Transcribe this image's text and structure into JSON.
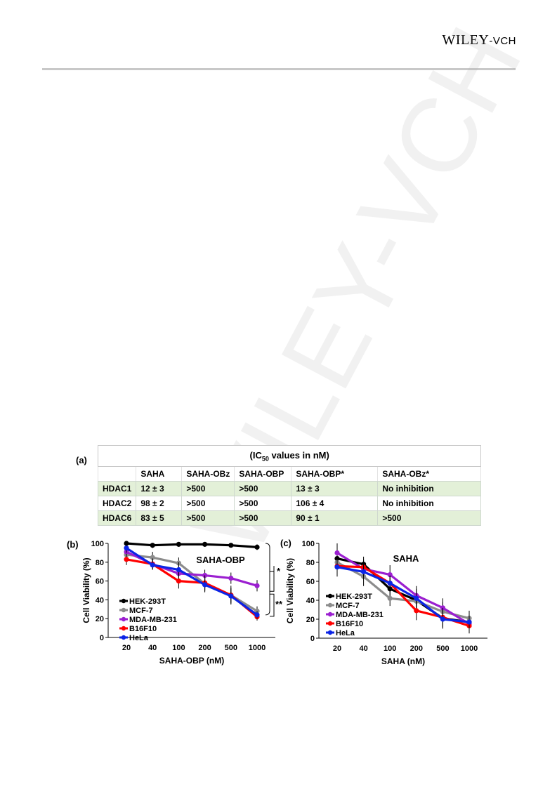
{
  "header": {
    "logo_main": "WILEY",
    "logo_suffix": "-VCH"
  },
  "watermark": "WILEY-VCH",
  "panel_labels": {
    "a": "(a)",
    "b": "(b)",
    "c": "(c)"
  },
  "table": {
    "title": "(IC50 values in nM)",
    "columns": [
      "",
      "SAHA",
      "SAHA-OBz",
      "SAHA-OBP",
      "SAHA-OBP*",
      "SAHA-OBz*"
    ],
    "rows": [
      [
        "HDAC1",
        "12 ± 3",
        ">500",
        ">500",
        "13 ± 3",
        "No inhibition"
      ],
      [
        "HDAC2",
        "98 ± 2",
        ">500",
        ">500",
        "106 ± 4",
        "No inhibition"
      ],
      [
        "HDAC6",
        "83 ± 5",
        ">500",
        ">500",
        "90 ± 1",
        ">500"
      ]
    ]
  },
  "chart_data": [
    {
      "type": "line",
      "panel": "b",
      "title": "SAHA-OBP",
      "xlabel": "SAHA-OBP (nM)",
      "ylabel": "Cell Viability (%)",
      "categories": [
        "20",
        "40",
        "100",
        "200",
        "500",
        "1000"
      ],
      "ylim": [
        0,
        100
      ],
      "yticks": [
        0,
        20,
        40,
        60,
        80,
        100
      ],
      "legend": "bottom-left",
      "annotations": [
        "*",
        "**"
      ],
      "series": [
        {
          "name": "HEK-293T",
          "color": "#000000",
          "values": [
            100,
            98,
            99,
            99,
            98,
            96
          ],
          "errors": [
            2,
            3,
            2,
            2,
            2,
            3
          ]
        },
        {
          "name": "MCF-7",
          "color": "#8c8c8c",
          "values": [
            88,
            85,
            79,
            57,
            45,
            28
          ],
          "errors": [
            5,
            6,
            6,
            8,
            8,
            5
          ]
        },
        {
          "name": "MDA-MB-231",
          "color": "#9b1fd0",
          "values": [
            91,
            78,
            68,
            66,
            63,
            55
          ],
          "errors": [
            5,
            5,
            6,
            6,
            6,
            6
          ]
        },
        {
          "name": "B16F10",
          "color": "#ff0000",
          "values": [
            83,
            78,
            60,
            58,
            45,
            22
          ],
          "errors": [
            6,
            6,
            8,
            8,
            10,
            4
          ]
        },
        {
          "name": "HeLa",
          "color": "#0b24e6",
          "values": [
            95,
            77,
            72,
            56,
            44,
            24
          ],
          "errors": [
            5,
            5,
            8,
            8,
            8,
            4
          ]
        }
      ]
    },
    {
      "type": "line",
      "panel": "c",
      "title": "SAHA",
      "xlabel": "SAHA (nM)",
      "ylabel": "Cell Viability (%)",
      "categories": [
        "20",
        "40",
        "100",
        "200",
        "500",
        "1000"
      ],
      "ylim": [
        0,
        100
      ],
      "yticks": [
        0,
        20,
        40,
        60,
        80,
        100
      ],
      "legend": "bottom-left",
      "series": [
        {
          "name": "HEK-293T",
          "color": "#000000",
          "values": [
            84,
            78,
            52,
            40,
            21,
            17
          ],
          "errors": [
            10,
            8,
            8,
            8,
            10,
            10
          ]
        },
        {
          "name": "MCF-7",
          "color": "#8c8c8c",
          "values": [
            80,
            65,
            42,
            39,
            28,
            21
          ],
          "errors": [
            10,
            10,
            8,
            8,
            10,
            8
          ]
        },
        {
          "name": "MDA-MB-231",
          "color": "#9b1fd0",
          "values": [
            90,
            73,
            67,
            45,
            32,
            15
          ],
          "errors": [
            10,
            8,
            10,
            10,
            10,
            8
          ]
        },
        {
          "name": "B16F10",
          "color": "#ff0000",
          "values": [
            76,
            75,
            58,
            29,
            22,
            13
          ],
          "errors": [
            10,
            8,
            8,
            10,
            10,
            8
          ]
        },
        {
          "name": "HeLa",
          "color": "#0b24e6",
          "values": [
            75,
            70,
            58,
            42,
            20,
            17
          ],
          "errors": [
            10,
            8,
            8,
            10,
            10,
            8
          ]
        }
      ]
    }
  ]
}
